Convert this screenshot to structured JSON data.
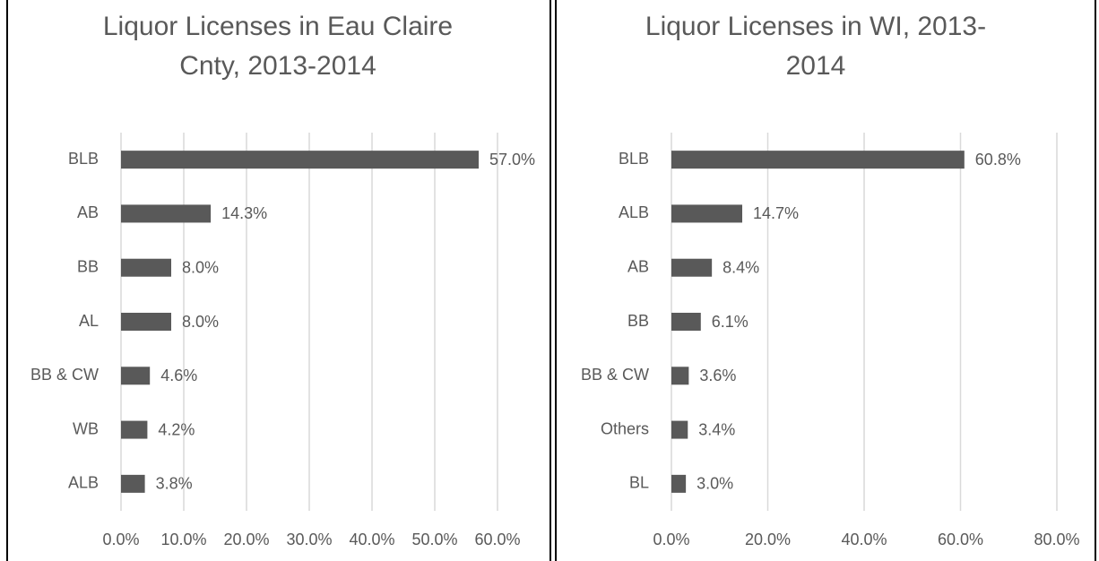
{
  "chart_data": [
    {
      "type": "bar",
      "orientation": "horizontal",
      "title": "Liquor Licenses in Eau Claire Cnty, 2013-2014",
      "categories": [
        "BLB",
        "AB",
        "BB",
        "AL",
        "BB & CW",
        "WB",
        "ALB"
      ],
      "values": [
        57.0,
        14.3,
        8.0,
        8.0,
        4.6,
        4.2,
        3.8
      ],
      "value_labels": [
        "57.0%",
        "14.3%",
        "8.0%",
        "8.0%",
        "4.6%",
        "4.2%",
        "3.8%"
      ],
      "color": "#595959",
      "xlim": [
        0,
        60
      ],
      "xticks": [
        {
          "value": 0,
          "label": "0.0%"
        },
        {
          "value": 10,
          "label": "10.0%"
        },
        {
          "value": 20,
          "label": "20.0%"
        },
        {
          "value": 30,
          "label": "30.0%"
        },
        {
          "value": 40,
          "label": "40.0%"
        },
        {
          "value": 50,
          "label": "50.0%"
        },
        {
          "value": 60,
          "label": "60.0%"
        }
      ],
      "grid": true
    },
    {
      "type": "bar",
      "orientation": "horizontal",
      "title": "Liquor Licenses in WI, 2013-2014",
      "categories": [
        "BLB",
        "ALB",
        "AB",
        "BB",
        "BB & CW",
        "Others",
        "BL"
      ],
      "values": [
        60.8,
        14.7,
        8.4,
        6.1,
        3.6,
        3.4,
        3.0
      ],
      "value_labels": [
        "60.8%",
        "14.7%",
        "8.4%",
        "6.1%",
        "3.6%",
        "3.4%",
        "3.0%"
      ],
      "color": "#595959",
      "xlim": [
        0,
        80
      ],
      "xticks": [
        {
          "value": 0,
          "label": "0.0%"
        },
        {
          "value": 20,
          "label": "20.0%"
        },
        {
          "value": 40,
          "label": "40.0%"
        },
        {
          "value": 60,
          "label": "60.0%"
        },
        {
          "value": 80,
          "label": "80.0%"
        }
      ],
      "grid": true
    }
  ]
}
